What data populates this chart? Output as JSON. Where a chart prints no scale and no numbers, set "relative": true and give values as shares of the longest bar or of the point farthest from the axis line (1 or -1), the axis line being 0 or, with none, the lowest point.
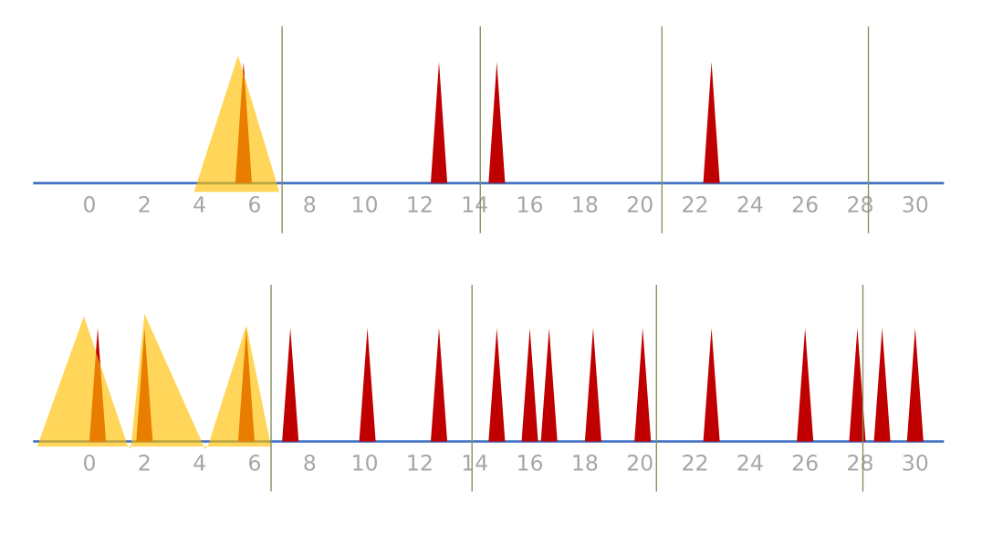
{
  "chart_data": [
    {
      "type": "area",
      "relative": true,
      "xlim": [
        -2,
        31
      ],
      "xticks": [
        0,
        2,
        4,
        6,
        8,
        10,
        12,
        14,
        16,
        18,
        20,
        22,
        24,
        26,
        28,
        30
      ],
      "grid": false,
      "legend": false,
      "series": [
        {
          "color": "#c00000",
          "x": [
            5.3,
            5.6,
            5.9,
            12.4,
            12.7,
            13.0,
            14.5,
            14.8,
            15.1,
            22.3,
            22.6,
            22.9
          ],
          "values": [
            0,
            0.95,
            0,
            0,
            0.95,
            0,
            0,
            0.95,
            0,
            0,
            0.95,
            0
          ]
        },
        {
          "color": "#ffc000",
          "x": [
            3.8,
            5.4,
            6.9
          ],
          "values": [
            -0.07,
            1,
            -0.07
          ]
        }
      ],
      "ref_lines": [
        {
          "axis": "x",
          "value": 7,
          "color": "#8a9060"
        },
        {
          "axis": "x",
          "value": 14.2,
          "color": "#8a9060"
        },
        {
          "axis": "x",
          "value": 20.8,
          "color": "#8a9060"
        },
        {
          "axis": "x",
          "value": 28.3,
          "color": "#8a9060"
        }
      ]
    },
    {
      "type": "area",
      "relative": true,
      "xlim": [
        -2,
        31
      ],
      "xticks": [
        0,
        2,
        4,
        6,
        8,
        10,
        12,
        14,
        16,
        18,
        20,
        22,
        24,
        26,
        28,
        30
      ],
      "grid": false,
      "legend": false,
      "series": [
        {
          "color": "#c00000",
          "x": [
            0.0,
            0.3,
            0.6,
            1.7,
            2.0,
            2.3,
            5.4,
            5.7,
            6.0,
            7.0,
            7.3,
            7.6,
            9.8,
            10.1,
            10.4,
            12.4,
            12.7,
            13.0,
            14.5,
            14.8,
            15.1,
            15.7,
            16.0,
            16.3,
            16.4,
            16.7,
            17.0,
            18.0,
            18.3,
            18.6,
            19.8,
            20.1,
            20.4,
            22.3,
            22.6,
            22.9,
            25.7,
            26.0,
            26.3,
            27.6,
            27.9,
            28.2,
            28.5,
            28.8,
            29.1,
            29.7,
            30.0,
            30.3
          ],
          "values": [
            0,
            0.89,
            0,
            0,
            0.89,
            0,
            0,
            0.89,
            0,
            0,
            0.89,
            0,
            0,
            0.89,
            0,
            0,
            0.89,
            0,
            0,
            0.89,
            0,
            0,
            0.89,
            0,
            0,
            0.89,
            0,
            0,
            0.89,
            0,
            0,
            0.89,
            0,
            0,
            0.89,
            0,
            0,
            0.89,
            0,
            0,
            0.89,
            0,
            0,
            0.89,
            0,
            0,
            0.89,
            0
          ]
        },
        {
          "color": "#ffc000",
          "x": [
            -1.9,
            -0.2,
            1.4,
            1.5,
            2.0,
            4.2,
            4.3,
            5.7,
            6.6
          ],
          "values": [
            -0.04,
            0.98,
            -0.04,
            -0.06,
            1,
            -0.06,
            -0.04,
            0.91,
            -0.04
          ]
        }
      ],
      "ref_lines": [
        {
          "axis": "x",
          "value": 6.6,
          "color": "#8a9060"
        },
        {
          "axis": "x",
          "value": 13.9,
          "color": "#8a9060"
        },
        {
          "axis": "x",
          "value": 20.6,
          "color": "#8a9060"
        },
        {
          "axis": "x",
          "value": 28.1,
          "color": "#8a9060"
        }
      ]
    }
  ]
}
